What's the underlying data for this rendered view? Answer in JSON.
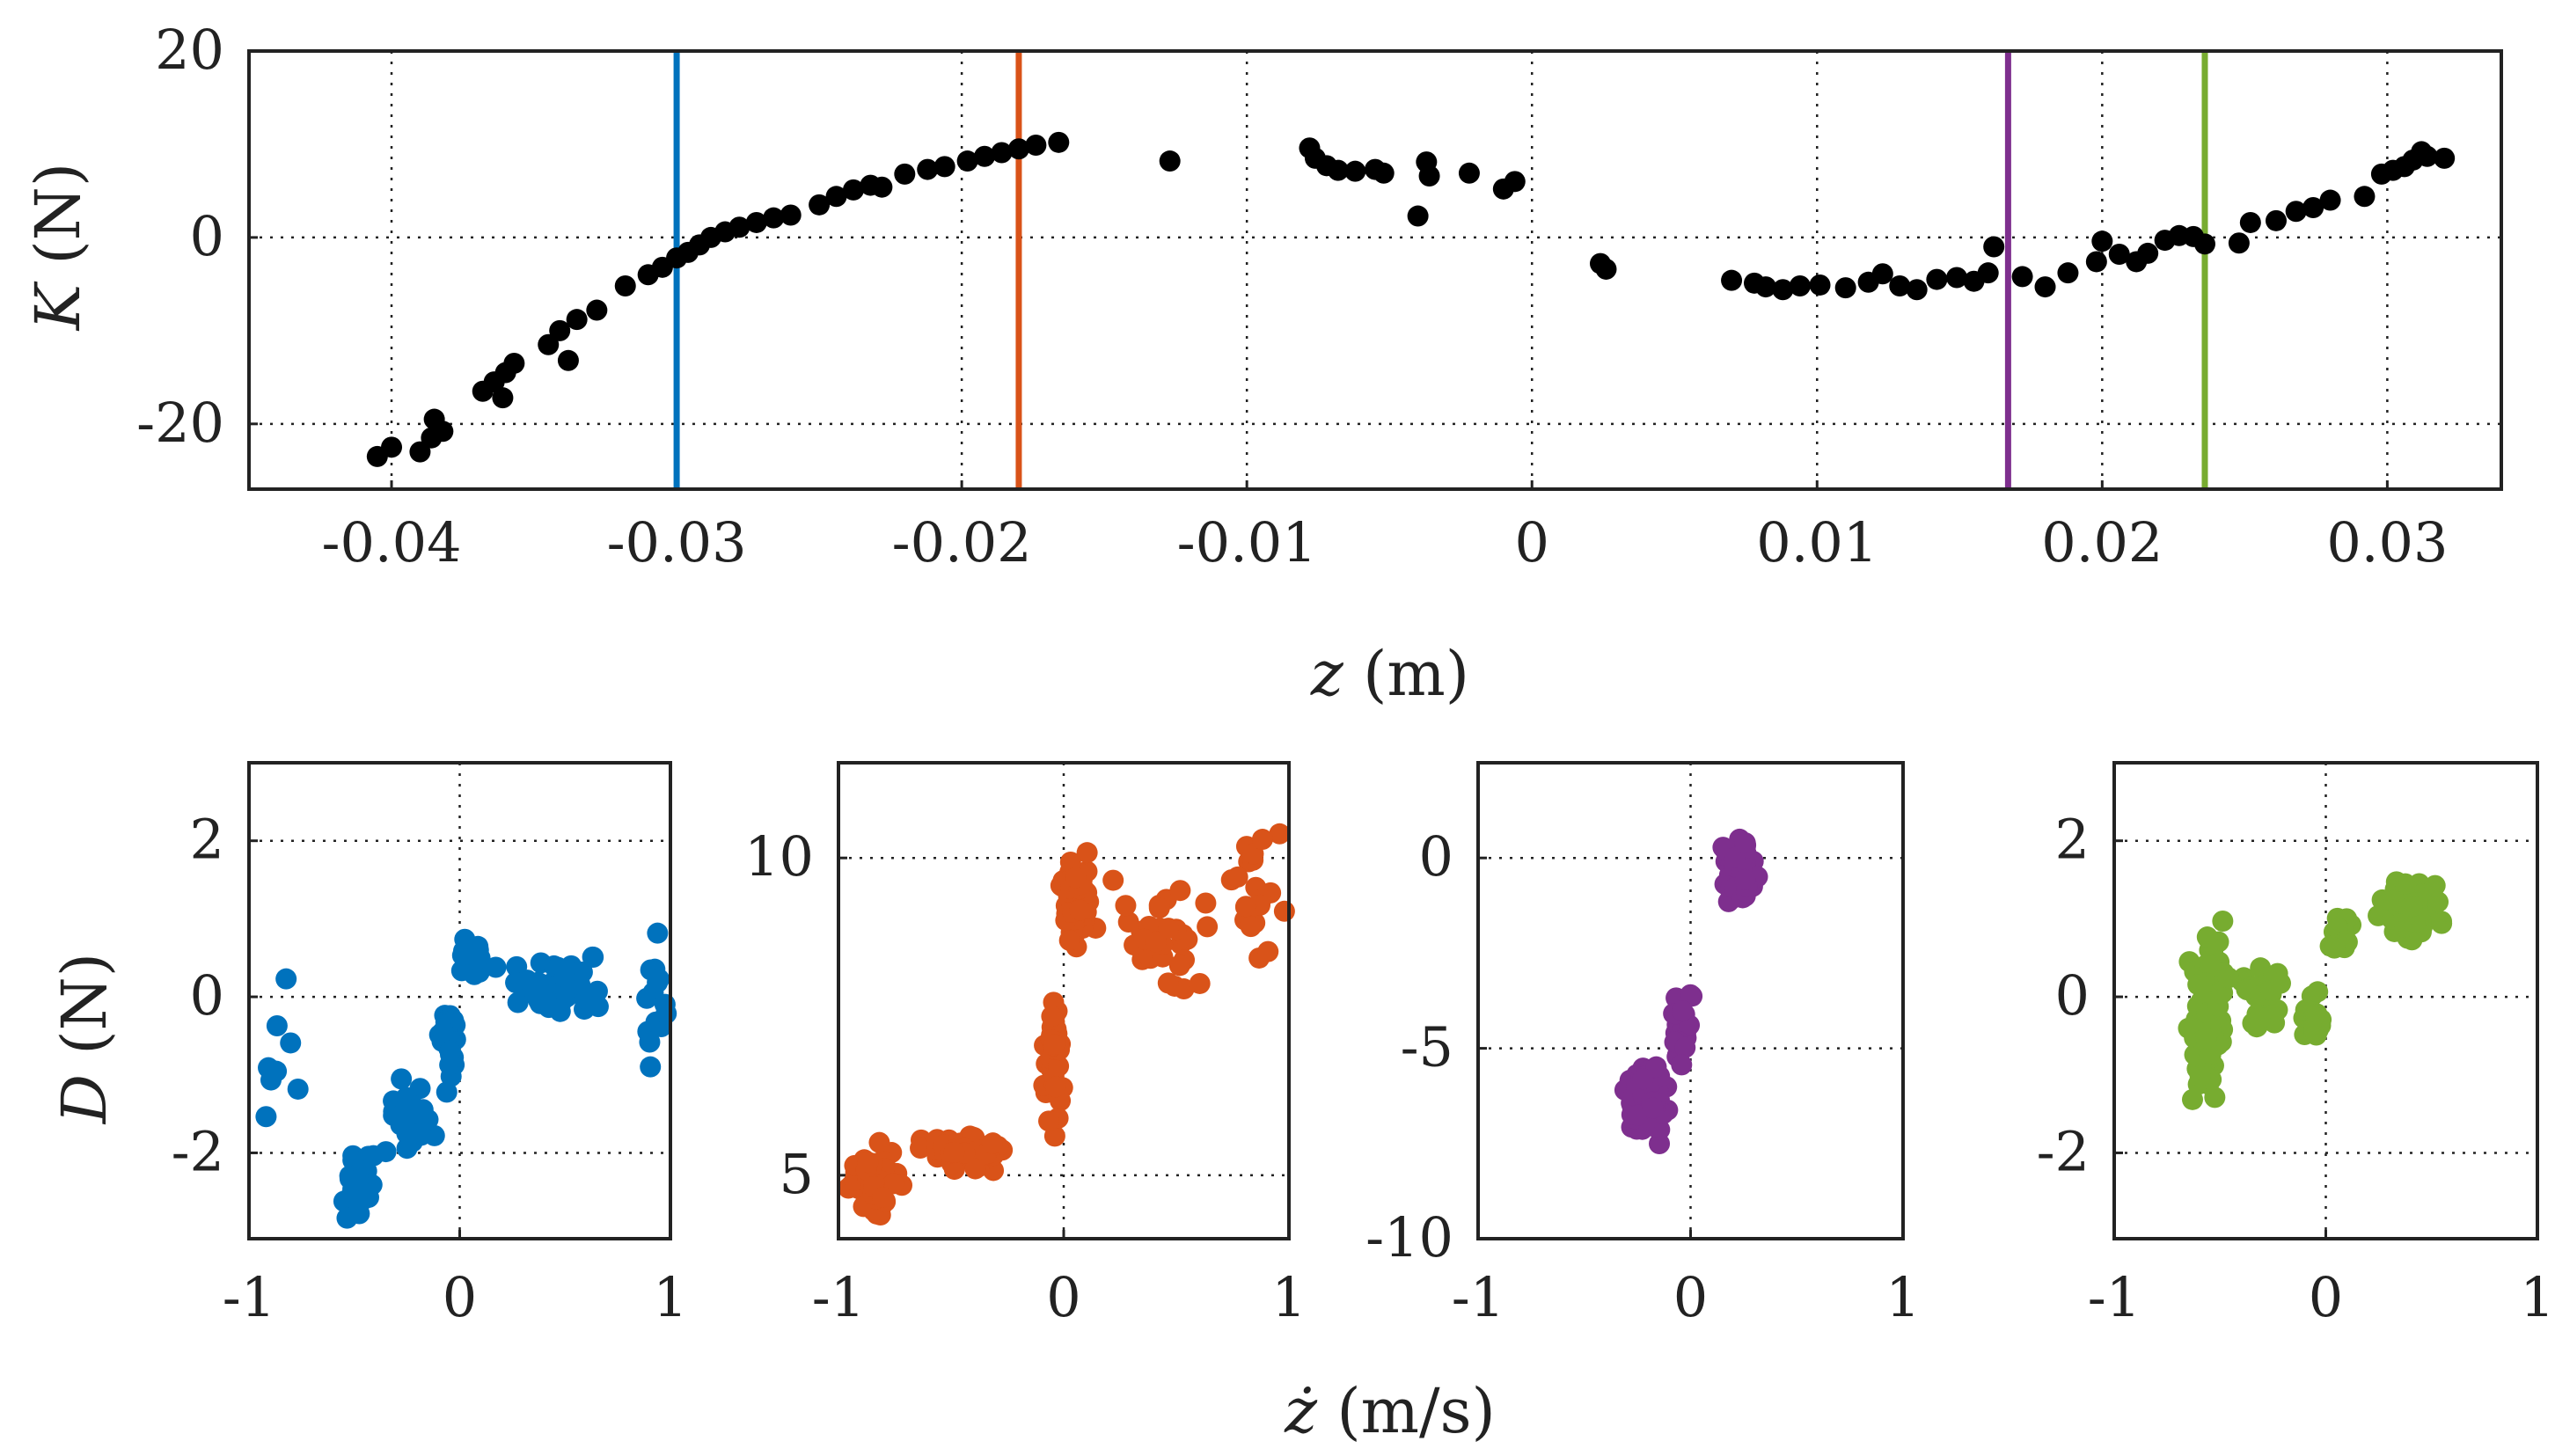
{
  "colors": {
    "top": "#000000",
    "blue": "#0072BD",
    "orange": "#D95319",
    "purple": "#7E2F8E",
    "green": "#77AC30"
  },
  "chart_data": [
    {
      "type": "scatter",
      "xlabel": "z (m)",
      "ylabel": "K (N)",
      "xlim": [
        -0.045,
        0.034
      ],
      "ylim": [
        -27,
        20
      ],
      "xticks": [
        "-0.04",
        "-0.03",
        "-0.02",
        "-0.01",
        "0",
        "0.01",
        "0.02",
        "0.03"
      ],
      "yticks": [
        "20",
        "0",
        "-20"
      ],
      "grid": true,
      "vlines": [
        {
          "x": -0.03,
          "color": "blue"
        },
        {
          "x": -0.018,
          "color": "orange"
        },
        {
          "x": 0.0167,
          "color": "purple"
        },
        {
          "x": 0.0236,
          "color": "green"
        }
      ],
      "points": [
        [
          -0.0405,
          -23.5
        ],
        [
          -0.04,
          -22.5
        ],
        [
          -0.039,
          -23
        ],
        [
          -0.0386,
          -21.5
        ],
        [
          -0.0385,
          -19.5
        ],
        [
          -0.0382,
          -20.8
        ],
        [
          -0.0368,
          -16.5
        ],
        [
          -0.0364,
          -15.5
        ],
        [
          -0.0361,
          -17.2
        ],
        [
          -0.036,
          -14.5
        ],
        [
          -0.0357,
          -13.5
        ],
        [
          -0.0345,
          -11.5
        ],
        [
          -0.0341,
          -10
        ],
        [
          -0.0338,
          -13.2
        ],
        [
          -0.0335,
          -8.8
        ],
        [
          -0.0328,
          -7.8
        ],
        [
          -0.0318,
          -5.2
        ],
        [
          -0.031,
          -4
        ],
        [
          -0.0305,
          -3.2
        ],
        [
          -0.03,
          -2.2
        ],
        [
          -0.0296,
          -1.6
        ],
        [
          -0.0292,
          -0.8
        ],
        [
          -0.0288,
          0
        ],
        [
          -0.0283,
          0.6
        ],
        [
          -0.0278,
          1.1
        ],
        [
          -0.0272,
          1.6
        ],
        [
          -0.0266,
          2.1
        ],
        [
          -0.026,
          2.4
        ],
        [
          -0.025,
          3.5
        ],
        [
          -0.0244,
          4.4
        ],
        [
          -0.0238,
          5.1
        ],
        [
          -0.0232,
          5.6
        ],
        [
          -0.0228,
          5.4
        ],
        [
          -0.022,
          6.8
        ],
        [
          -0.0212,
          7.3
        ],
        [
          -0.0206,
          7.6
        ],
        [
          -0.0198,
          8.2
        ],
        [
          -0.0192,
          8.7
        ],
        [
          -0.0186,
          9.1
        ],
        [
          -0.018,
          9.5
        ],
        [
          -0.0174,
          9.9
        ],
        [
          -0.0166,
          10.2
        ],
        [
          -0.0127,
          8.2
        ],
        [
          -0.0078,
          9.6
        ],
        [
          -0.0076,
          8.5
        ],
        [
          -0.0072,
          7.7
        ],
        [
          -0.0068,
          7.2
        ],
        [
          -0.0062,
          7.1
        ],
        [
          -0.0055,
          7.3
        ],
        [
          -0.0052,
          6.9
        ],
        [
          -0.004,
          2.3
        ],
        [
          -0.0037,
          8.1
        ],
        [
          -0.0036,
          6.6
        ],
        [
          -0.0022,
          6.9
        ],
        [
          -0.001,
          5.2
        ],
        [
          -0.0006,
          6
        ],
        [
          0.0024,
          -2.8
        ],
        [
          0.0026,
          -3.4
        ],
        [
          0.007,
          -4.6
        ],
        [
          0.0078,
          -4.9
        ],
        [
          0.0082,
          -5.3
        ],
        [
          0.0088,
          -5.6
        ],
        [
          0.0094,
          -5.2
        ],
        [
          0.0101,
          -5.1
        ],
        [
          0.011,
          -5.4
        ],
        [
          0.0118,
          -4.8
        ],
        [
          0.0123,
          -3.9
        ],
        [
          0.0129,
          -5.2
        ],
        [
          0.0135,
          -5.6
        ],
        [
          0.0142,
          -4.5
        ],
        [
          0.0149,
          -4.3
        ],
        [
          0.0155,
          -4.7
        ],
        [
          0.016,
          -3.8
        ],
        [
          0.0162,
          -1.0
        ],
        [
          0.0172,
          -4.2
        ],
        [
          0.018,
          -5.3
        ],
        [
          0.0188,
          -3.8
        ],
        [
          0.0198,
          -2.6
        ],
        [
          0.02,
          -0.4
        ],
        [
          0.0206,
          -1.8
        ],
        [
          0.0212,
          -2.6
        ],
        [
          0.0216,
          -1.7
        ],
        [
          0.0222,
          -0.3
        ],
        [
          0.0227,
          0.2
        ],
        [
          0.0232,
          0.1
        ],
        [
          0.0236,
          -0.7
        ],
        [
          0.0248,
          -0.6
        ],
        [
          0.0252,
          1.6
        ],
        [
          0.0261,
          1.8
        ],
        [
          0.0268,
          2.8
        ],
        [
          0.0274,
          3.2
        ],
        [
          0.028,
          4
        ],
        [
          0.0292,
          4.4
        ],
        [
          0.0298,
          6.8
        ],
        [
          0.0302,
          7.2
        ],
        [
          0.0306,
          7.6
        ],
        [
          0.0309,
          8.3
        ],
        [
          0.0312,
          9.2
        ],
        [
          0.0314,
          8.7
        ],
        [
          0.032,
          8.5
        ]
      ]
    },
    {
      "type": "scatter",
      "xlim": [
        -1,
        1
      ],
      "ylim": [
        -3.1,
        3
      ],
      "xticks": [
        "-1",
        "0",
        "1"
      ],
      "yticks": [
        "2",
        "0",
        "-2"
      ],
      "xgrid": [
        0
      ],
      "ygrid": [
        2,
        0,
        -2
      ],
      "ylabel": "D (N)",
      "color": "blue",
      "grid": true
    },
    {
      "type": "scatter",
      "xlim": [
        -1,
        1
      ],
      "ylim": [
        4,
        11.5
      ],
      "xticks": [
        "-1",
        "0",
        "1"
      ],
      "yticks": [
        "10",
        "5"
      ],
      "xgrid": [
        0
      ],
      "ygrid": [
        10,
        5
      ],
      "color": "orange",
      "grid": true
    },
    {
      "type": "scatter",
      "xlim": [
        -1,
        1
      ],
      "ylim": [
        -10,
        2.5
      ],
      "xticks": [
        "-1",
        "0",
        "1"
      ],
      "yticks": [
        "0",
        "-5",
        "-10"
      ],
      "xgrid": [
        0
      ],
      "ygrid": [
        0,
        -5
      ],
      "color": "purple",
      "grid": true
    },
    {
      "type": "scatter",
      "xlim": [
        -1,
        1
      ],
      "ylim": [
        -3.1,
        3
      ],
      "xticks": [
        "-1",
        "0",
        "1"
      ],
      "yticks": [
        "2",
        "0",
        "-2"
      ],
      "xgrid": [
        0
      ],
      "ygrid": [
        2,
        0,
        -2
      ],
      "color": "green",
      "grid": true
    }
  ],
  "labels": {
    "top_xlabel": "z (m)",
    "top_ylabel": "K (N)",
    "bottom_xlabel": "ż (m/s)",
    "bottom_ylabel": "D (N)"
  }
}
